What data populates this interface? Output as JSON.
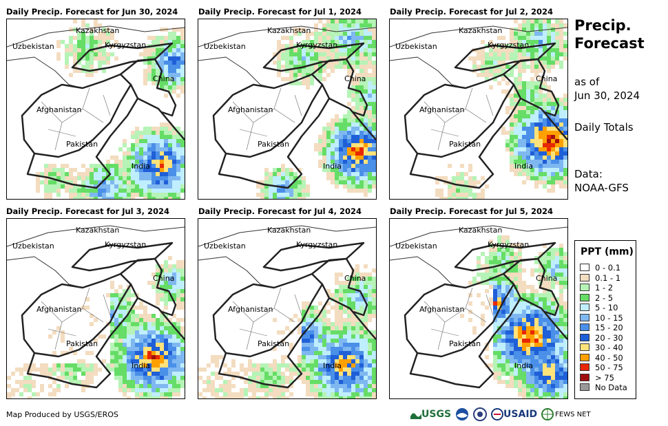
{
  "panels": [
    {
      "title": "Daily Precip. Forecast for Jun 30, 2024"
    },
    {
      "title": "Daily Precip. Forecast for Jul 1, 2024"
    },
    {
      "title": "Daily Precip. Forecast for Jul 2, 2024"
    },
    {
      "title": "Daily Precip. Forecast for Jul 3, 2024"
    },
    {
      "title": "Daily Precip. Forecast for Jul 4, 2024"
    },
    {
      "title": "Daily Precip. Forecast for Jul 5, 2024"
    }
  ],
  "countries": {
    "kazakhstan": "Kazakhstan",
    "uzbekistan": "Uzbekistan",
    "kyrgyzstan": "Kyrgyzstan",
    "china": "China",
    "afghanistan": "Afghanistan",
    "pakistan": "Pakistan",
    "india": "India"
  },
  "side": {
    "title_line1": "Precip.",
    "title_line2": "Forecast",
    "asof_line1": "as of",
    "asof_line2": "Jun 30, 2024",
    "totals": "Daily Totals",
    "data_line1": "Data:",
    "data_line2": "NOAA-GFS"
  },
  "legend": {
    "title": "PPT (mm)",
    "items": [
      {
        "label": "0 - 0.1",
        "color": "#ffffff"
      },
      {
        "label": "0.1 - 1",
        "color": "#f3dcbf"
      },
      {
        "label": "1 - 2",
        "color": "#b6f3b6"
      },
      {
        "label": "2 - 5",
        "color": "#66dd66"
      },
      {
        "label": "5 - 10",
        "color": "#bfeeff"
      },
      {
        "label": "10 - 15",
        "color": "#7fb7f0"
      },
      {
        "label": "15 - 20",
        "color": "#4a8fe8"
      },
      {
        "label": "20 - 30",
        "color": "#1f5fd8"
      },
      {
        "label": "30 - 40",
        "color": "#ffe27a"
      },
      {
        "label": "40 - 50",
        "color": "#ffa000"
      },
      {
        "label": "50 - 75",
        "color": "#e82800"
      },
      {
        "label": "> 75",
        "color": "#a01010"
      },
      {
        "label": "No Data",
        "color": "#999999"
      }
    ]
  },
  "credit": "Map Produced by USGS/EROS",
  "logos": {
    "usgs": "USGS",
    "usaid": "USAID",
    "fews": "FEWS NET"
  }
}
